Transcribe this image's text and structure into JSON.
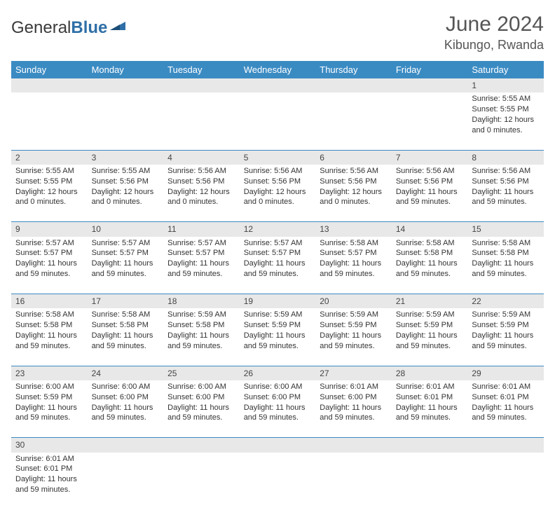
{
  "logo": {
    "part1": "General",
    "part2": "Blue"
  },
  "title": "June 2024",
  "location": "Kibungo, Rwanda",
  "colors": {
    "header_bg": "#3b8bc3",
    "header_text": "#ffffff",
    "daynum_bg": "#e8e8e8",
    "rule": "#3b8bc3",
    "text": "#333333"
  },
  "day_headers": [
    "Sunday",
    "Monday",
    "Tuesday",
    "Wednesday",
    "Thursday",
    "Friday",
    "Saturday"
  ],
  "weeks": [
    [
      null,
      null,
      null,
      null,
      null,
      null,
      {
        "n": "1",
        "rise": "5:55 AM",
        "set": "5:55 PM",
        "dl": "12 hours and 0 minutes."
      }
    ],
    [
      {
        "n": "2",
        "rise": "5:55 AM",
        "set": "5:55 PM",
        "dl": "12 hours and 0 minutes."
      },
      {
        "n": "3",
        "rise": "5:55 AM",
        "set": "5:56 PM",
        "dl": "12 hours and 0 minutes."
      },
      {
        "n": "4",
        "rise": "5:56 AM",
        "set": "5:56 PM",
        "dl": "12 hours and 0 minutes."
      },
      {
        "n": "5",
        "rise": "5:56 AM",
        "set": "5:56 PM",
        "dl": "12 hours and 0 minutes."
      },
      {
        "n": "6",
        "rise": "5:56 AM",
        "set": "5:56 PM",
        "dl": "12 hours and 0 minutes."
      },
      {
        "n": "7",
        "rise": "5:56 AM",
        "set": "5:56 PM",
        "dl": "11 hours and 59 minutes."
      },
      {
        "n": "8",
        "rise": "5:56 AM",
        "set": "5:56 PM",
        "dl": "11 hours and 59 minutes."
      }
    ],
    [
      {
        "n": "9",
        "rise": "5:57 AM",
        "set": "5:57 PM",
        "dl": "11 hours and 59 minutes."
      },
      {
        "n": "10",
        "rise": "5:57 AM",
        "set": "5:57 PM",
        "dl": "11 hours and 59 minutes."
      },
      {
        "n": "11",
        "rise": "5:57 AM",
        "set": "5:57 PM",
        "dl": "11 hours and 59 minutes."
      },
      {
        "n": "12",
        "rise": "5:57 AM",
        "set": "5:57 PM",
        "dl": "11 hours and 59 minutes."
      },
      {
        "n": "13",
        "rise": "5:58 AM",
        "set": "5:57 PM",
        "dl": "11 hours and 59 minutes."
      },
      {
        "n": "14",
        "rise": "5:58 AM",
        "set": "5:58 PM",
        "dl": "11 hours and 59 minutes."
      },
      {
        "n": "15",
        "rise": "5:58 AM",
        "set": "5:58 PM",
        "dl": "11 hours and 59 minutes."
      }
    ],
    [
      {
        "n": "16",
        "rise": "5:58 AM",
        "set": "5:58 PM",
        "dl": "11 hours and 59 minutes."
      },
      {
        "n": "17",
        "rise": "5:58 AM",
        "set": "5:58 PM",
        "dl": "11 hours and 59 minutes."
      },
      {
        "n": "18",
        "rise": "5:59 AM",
        "set": "5:58 PM",
        "dl": "11 hours and 59 minutes."
      },
      {
        "n": "19",
        "rise": "5:59 AM",
        "set": "5:59 PM",
        "dl": "11 hours and 59 minutes."
      },
      {
        "n": "20",
        "rise": "5:59 AM",
        "set": "5:59 PM",
        "dl": "11 hours and 59 minutes."
      },
      {
        "n": "21",
        "rise": "5:59 AM",
        "set": "5:59 PM",
        "dl": "11 hours and 59 minutes."
      },
      {
        "n": "22",
        "rise": "5:59 AM",
        "set": "5:59 PM",
        "dl": "11 hours and 59 minutes."
      }
    ],
    [
      {
        "n": "23",
        "rise": "6:00 AM",
        "set": "5:59 PM",
        "dl": "11 hours and 59 minutes."
      },
      {
        "n": "24",
        "rise": "6:00 AM",
        "set": "6:00 PM",
        "dl": "11 hours and 59 minutes."
      },
      {
        "n": "25",
        "rise": "6:00 AM",
        "set": "6:00 PM",
        "dl": "11 hours and 59 minutes."
      },
      {
        "n": "26",
        "rise": "6:00 AM",
        "set": "6:00 PM",
        "dl": "11 hours and 59 minutes."
      },
      {
        "n": "27",
        "rise": "6:01 AM",
        "set": "6:00 PM",
        "dl": "11 hours and 59 minutes."
      },
      {
        "n": "28",
        "rise": "6:01 AM",
        "set": "6:01 PM",
        "dl": "11 hours and 59 minutes."
      },
      {
        "n": "29",
        "rise": "6:01 AM",
        "set": "6:01 PM",
        "dl": "11 hours and 59 minutes."
      }
    ],
    [
      {
        "n": "30",
        "rise": "6:01 AM",
        "set": "6:01 PM",
        "dl": "11 hours and 59 minutes."
      },
      null,
      null,
      null,
      null,
      null,
      null
    ]
  ],
  "labels": {
    "sunrise": "Sunrise:",
    "sunset": "Sunset:",
    "daylight": "Daylight:"
  }
}
